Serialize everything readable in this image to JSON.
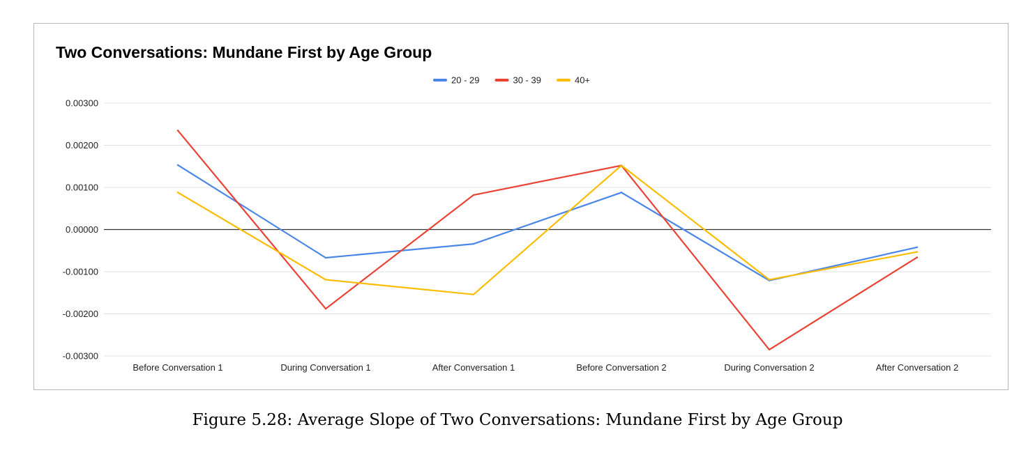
{
  "chart_data": {
    "type": "line",
    "title": "Two Conversations: Mundane First by Age Group",
    "categories": [
      "Before Conversation 1",
      "During Conversation 1",
      "After Conversation 1",
      "Before Conversation 2",
      "During Conversation 2",
      "After Conversation 2"
    ],
    "series": [
      {
        "name": "20 - 29",
        "color": "#4a86e8",
        "values": [
          0.00153,
          -0.00067,
          -0.00034,
          0.00088,
          -0.00121,
          -0.00042
        ]
      },
      {
        "name": "30 - 39",
        "color": "#ea4335",
        "values": [
          0.00235,
          -0.00188,
          0.00082,
          0.00152,
          -0.00285,
          -0.00066
        ]
      },
      {
        "name": "40+",
        "color": "#fbbc04",
        "values": [
          0.00088,
          -0.00119,
          -0.00154,
          0.00152,
          -0.00119,
          -0.00053
        ]
      }
    ],
    "y_ticks": [
      "0.00300",
      "0.00200",
      "0.00100",
      "0.00000",
      "-0.00100",
      "-0.00200",
      "-0.00300"
    ],
    "y_tick_values": [
      0.003,
      0.002,
      0.001,
      0,
      -0.001,
      -0.002,
      -0.003
    ],
    "ylim": [
      -0.003,
      0.003
    ],
    "grid": true,
    "legend_position": "top-center"
  },
  "caption": "Figure 5.28: Average Slope of Two Conversations: Mundane First by Age Group"
}
